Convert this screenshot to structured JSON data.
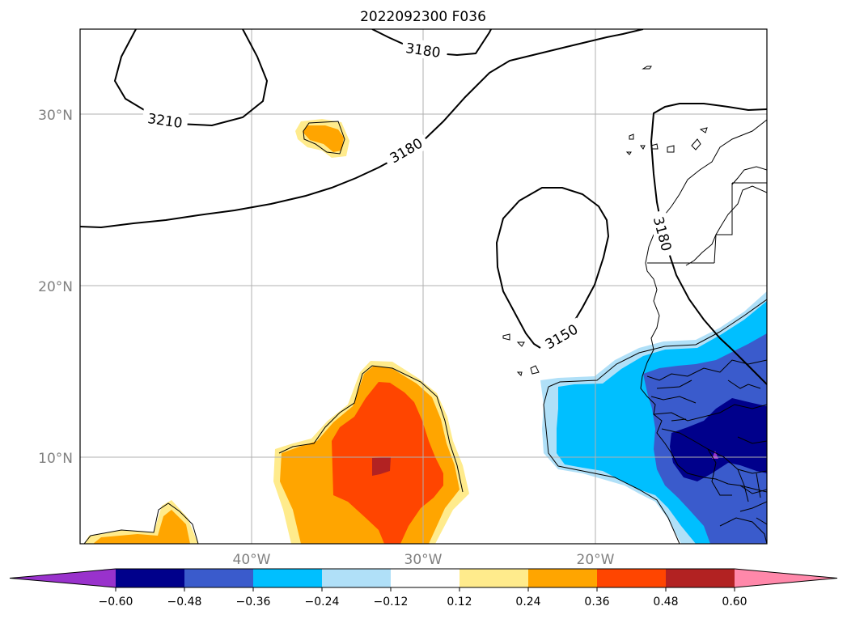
{
  "title": "2022092300 F036",
  "map": {
    "lat_range": [
      5,
      35
    ],
    "lon_range": [
      -50,
      -10
    ],
    "lat_ticks": [
      {
        "value": 30,
        "label": "30°N"
      },
      {
        "value": 20,
        "label": "20°N"
      },
      {
        "value": 10,
        "label": "10°N"
      }
    ],
    "lon_ticks": [
      {
        "value": -40,
        "label": "40°W"
      },
      {
        "value": -30,
        "label": "30°W"
      },
      {
        "value": -20,
        "label": "20°W"
      }
    ],
    "grid": true,
    "contour_labels": [
      "3210",
      "3180",
      "3180",
      "3180",
      "3150"
    ]
  },
  "colorbar": {
    "levels": [
      "−0.60",
      "−0.48",
      "−0.36",
      "−0.24",
      "−0.12",
      "0.12",
      "0.24",
      "0.36",
      "0.48",
      "0.60"
    ],
    "colors": [
      "#9932cc",
      "#00008b",
      "#3a5bcc",
      "#00bfff",
      "#b0e0f8",
      "#ffffff",
      "#ffeb8c",
      "#ffa500",
      "#ff4500",
      "#b22222",
      "#ff88aa"
    ]
  }
}
